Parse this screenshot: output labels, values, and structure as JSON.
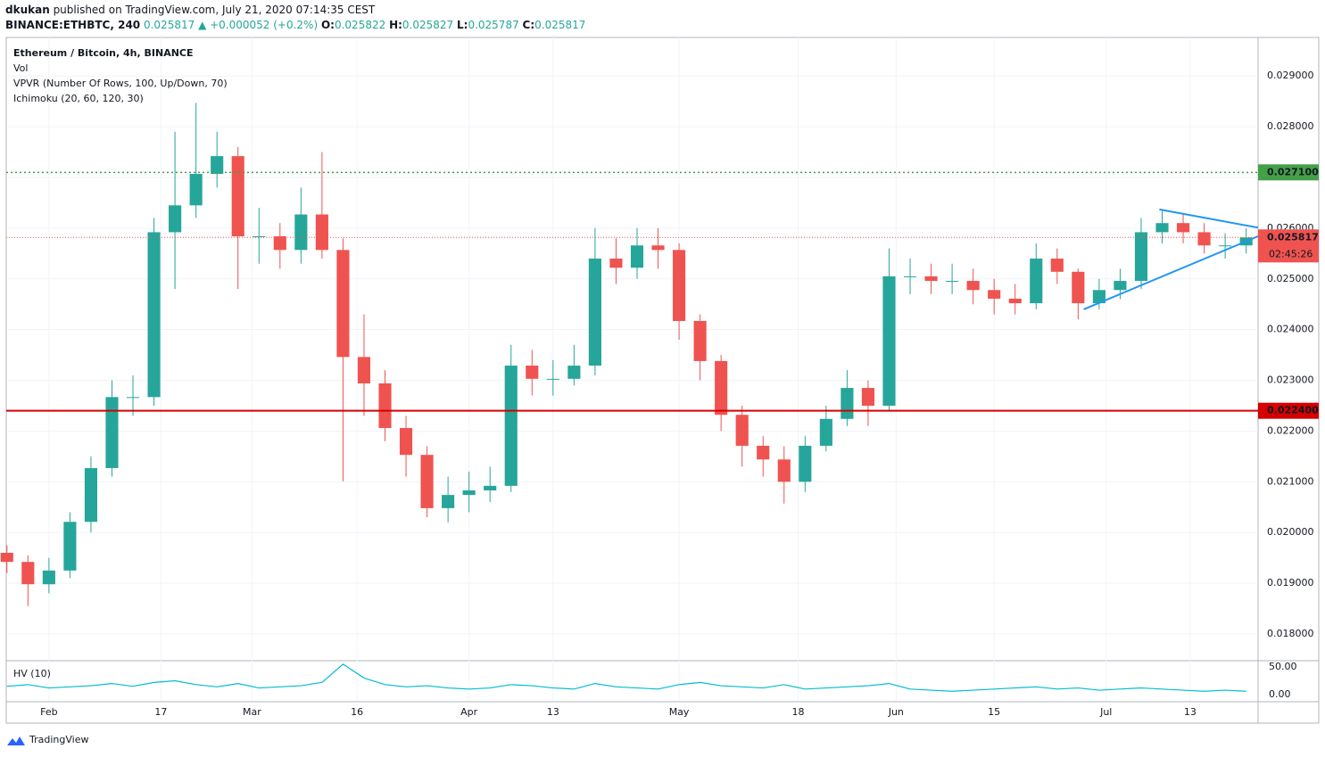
{
  "header": {
    "author": "dkukan",
    "published": "published on TradingView.com, July 21, 2020 07:14:35 CEST",
    "symbol": "BINANCE:ETHBTC, 240",
    "last": "0.025817",
    "change": "▲ +0.000052 (+0.2%)",
    "o_label": "O:",
    "o": "0.025822",
    "h_label": "H:",
    "h": "0.025827",
    "l_label": "L:",
    "l": "0.025787",
    "c_label": "C:",
    "c": "0.025817"
  },
  "legend": [
    "Ethereum / Bitcoin, 4h, BINANCE",
    "Vol",
    "VPVR (Number Of Rows, 100, Up/Down, 70)",
    "Ichimoku (20, 60, 120, 30)"
  ],
  "footer": "TradingView",
  "chart_data": {
    "type": "candlestick",
    "up_color": "#26a69a",
    "down_color": "#ef5350",
    "grid": true,
    "x": [
      -6,
      -3,
      0,
      3,
      6,
      9,
      12,
      15,
      18,
      21,
      24,
      27,
      30,
      33,
      36,
      39,
      42,
      45,
      48,
      51,
      54,
      57,
      60,
      63,
      66,
      69,
      72,
      75,
      78,
      81,
      84,
      87,
      90,
      93,
      96,
      99,
      102,
      105,
      108,
      111,
      114,
      117,
      120,
      123,
      126,
      129,
      132,
      135,
      138,
      141,
      144,
      147,
      150,
      153,
      156,
      159,
      162,
      165,
      168,
      171
    ],
    "open": [
      0.0196,
      0.01942,
      0.01898,
      0.01925,
      0.02021,
      0.02127,
      0.02267,
      0.02267,
      0.02592,
      0.02645,
      0.02707,
      0.02742,
      0.02584,
      0.02584,
      0.02557,
      0.02627,
      0.02557,
      0.02346,
      0.02294,
      0.02206,
      0.02153,
      0.02048,
      0.02074,
      0.02083,
      0.02092,
      0.02329,
      0.02303,
      0.02303,
      0.02329,
      0.0254,
      0.02522,
      0.02566,
      0.02557,
      0.02417,
      0.02338,
      0.02232,
      0.02171,
      0.02144,
      0.021,
      0.02171,
      0.02224,
      0.02285,
      0.0225,
      0.02505,
      0.02505,
      0.02496,
      0.02496,
      0.02478,
      0.02461,
      0.02452,
      0.0254,
      0.02514,
      0.02452,
      0.02478,
      0.02496,
      0.02592,
      0.0261,
      0.02592,
      0.02566,
      0.02566
    ],
    "high": [
      0.01975,
      0.01955,
      0.0195,
      0.0204,
      0.0215,
      0.023,
      0.0231,
      0.0262,
      0.0279,
      0.02847,
      0.0279,
      0.0276,
      0.0264,
      0.0261,
      0.0268,
      0.0275,
      0.0258,
      0.0243,
      0.0232,
      0.0223,
      0.0217,
      0.0211,
      0.0212,
      0.0213,
      0.0237,
      0.0236,
      0.0234,
      0.0237,
      0.026,
      0.0258,
      0.026,
      0.026,
      0.0257,
      0.0243,
      0.0235,
      0.0225,
      0.0219,
      0.0217,
      0.0219,
      0.0225,
      0.0232,
      0.023,
      0.0256,
      0.0254,
      0.0253,
      0.0253,
      0.0252,
      0.025,
      0.0249,
      0.0257,
      0.0256,
      0.0252,
      0.025,
      0.0252,
      0.0262,
      0.02635,
      0.0263,
      0.0261,
      0.0259,
      0.026
    ],
    "low": [
      0.0192,
      0.01855,
      0.0188,
      0.0191,
      0.02,
      0.0211,
      0.0223,
      0.0225,
      0.0248,
      0.0262,
      0.0268,
      0.0248,
      0.0253,
      0.0252,
      0.0253,
      0.0254,
      0.02101,
      0.0223,
      0.0218,
      0.0211,
      0.0203,
      0.0202,
      0.0204,
      0.0206,
      0.0208,
      0.0227,
      0.0227,
      0.0229,
      0.0231,
      0.0249,
      0.025,
      0.0252,
      0.0238,
      0.023,
      0.022,
      0.0213,
      0.0211,
      0.02057,
      0.0208,
      0.0216,
      0.0221,
      0.0221,
      0.0224,
      0.0247,
      0.0247,
      0.0247,
      0.0245,
      0.0243,
      0.0243,
      0.0244,
      0.0249,
      0.0242,
      0.0244,
      0.0246,
      0.0248,
      0.0257,
      0.0257,
      0.0255,
      0.0254,
      0.0255
    ],
    "close": [
      0.01942,
      0.01898,
      0.01925,
      0.02021,
      0.02127,
      0.02267,
      0.02267,
      0.02592,
      0.02645,
      0.02707,
      0.02742,
      0.02584,
      0.02584,
      0.02557,
      0.02627,
      0.02557,
      0.02346,
      0.02294,
      0.02206,
      0.02153,
      0.02048,
      0.02074,
      0.02083,
      0.02092,
      0.02329,
      0.02303,
      0.02303,
      0.02329,
      0.0254,
      0.02522,
      0.02566,
      0.02557,
      0.02417,
      0.02338,
      0.02232,
      0.02171,
      0.02144,
      0.021,
      0.02171,
      0.02224,
      0.02285,
      0.0225,
      0.02505,
      0.02505,
      0.02496,
      0.02496,
      0.02478,
      0.02461,
      0.02452,
      0.0254,
      0.02514,
      0.02452,
      0.02478,
      0.02496,
      0.02592,
      0.0261,
      0.02592,
      0.02566,
      0.02566,
      0.025817
    ],
    "xlim": [
      -6.1,
      172.7
    ],
    "xticks": [
      {
        "value": 0,
        "label": "Feb"
      },
      {
        "value": 16,
        "label": "17"
      },
      {
        "value": 29,
        "label": "Mar"
      },
      {
        "value": 44,
        "label": "16"
      },
      {
        "value": 60,
        "label": "Apr"
      },
      {
        "value": 72,
        "label": "13"
      },
      {
        "value": 90,
        "label": "May"
      },
      {
        "value": 107,
        "label": "18"
      },
      {
        "value": 121,
        "label": "Jun"
      },
      {
        "value": 135,
        "label": "15"
      },
      {
        "value": 151,
        "label": "Jul"
      },
      {
        "value": 163,
        "label": "13"
      }
    ],
    "ylim": [
      0.01749,
      0.02976
    ],
    "yticks": [
      {
        "value": 0.018,
        "label": "0.018000"
      },
      {
        "value": 0.019,
        "label": "0.019000"
      },
      {
        "value": 0.02,
        "label": "0.020000"
      },
      {
        "value": 0.021,
        "label": "0.021000"
      },
      {
        "value": 0.022,
        "label": "0.022000"
      },
      {
        "value": 0.023,
        "label": "0.023000"
      },
      {
        "value": 0.024,
        "label": "0.024000"
      },
      {
        "value": 0.025,
        "label": "0.025000"
      },
      {
        "value": 0.026,
        "label": "0.026000"
      },
      {
        "value": 0.027,
        "label": "0.027000"
      },
      {
        "value": 0.028,
        "label": "0.028000"
      },
      {
        "value": 0.029,
        "label": "0.029000"
      }
    ],
    "levels": [
      {
        "value": 0.0271,
        "label": "0.027100",
        "color": "#43a047",
        "style": "dotted"
      },
      {
        "value": 0.0224,
        "label": "0.022400",
        "color": "#d50000",
        "style": "solid"
      }
    ],
    "last": {
      "value": 0.025817,
      "label": "0.025817",
      "countdown": "02:45:26",
      "color": "#ef5350"
    },
    "drawings": [
      {
        "color": "#2196f3",
        "x": [
          158.6,
          172.7
        ],
        "y": [
          0.02637,
          0.02601
        ]
      },
      {
        "color": "#2196f3",
        "x": [
          147.8,
          172.7
        ],
        "y": [
          0.0244,
          0.02584
        ]
      }
    ],
    "hv": {
      "title": "HV (10)",
      "color": "#00bcd4",
      "values": [
        15,
        18,
        12,
        14,
        16,
        20,
        15,
        22,
        25,
        18,
        14,
        20,
        12,
        14,
        16,
        22,
        55,
        30,
        18,
        14,
        16,
        12,
        10,
        12,
        18,
        16,
        12,
        10,
        20,
        14,
        12,
        10,
        18,
        22,
        16,
        14,
        12,
        18,
        10,
        12,
        14,
        16,
        20,
        10,
        8,
        6,
        8,
        10,
        12,
        14,
        10,
        12,
        8,
        10,
        12,
        10,
        8,
        6,
        8,
        6
      ],
      "ylim": [
        -11.3,
        59.7
      ],
      "yticks": [
        {
          "value": 50,
          "label": "50.00"
        },
        {
          "value": 0,
          "label": "0.00"
        }
      ]
    }
  }
}
